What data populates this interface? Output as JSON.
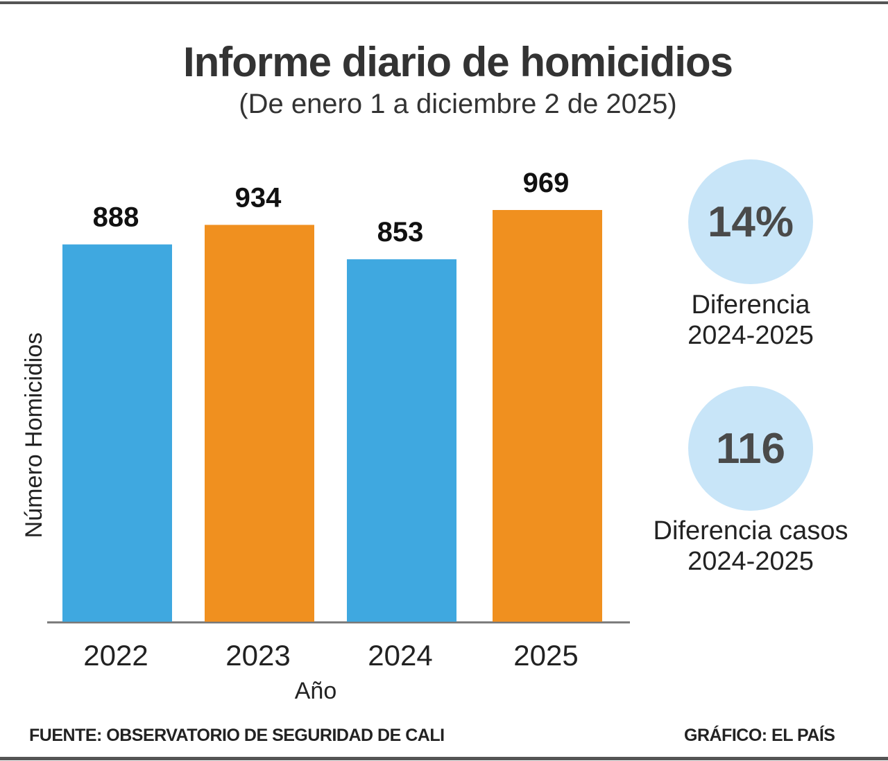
{
  "chart_data": {
    "type": "bar",
    "title": "Informe diario de homicidios",
    "subtitle": "(De enero 1 a diciembre  2 de 2025)",
    "categories": [
      "2022",
      "2023",
      "2024",
      "2025"
    ],
    "values": [
      888,
      934,
      853,
      969
    ],
    "data_labels": [
      "888",
      "934",
      "853",
      "969"
    ],
    "bar_colors": [
      "#3fa8e0",
      "#f0901f",
      "#3fa8e0",
      "#f0901f"
    ],
    "xlabel": "Año",
    "ylabel": "Número Homicidios",
    "ylim": [
      0,
      969
    ],
    "grid": false,
    "legend": "none"
  },
  "stats": [
    {
      "value": "14%",
      "label_line1": "Diferencia",
      "label_line2": "2024-2025"
    },
    {
      "value": "116",
      "label_line1": "Diferencia casos",
      "label_line2": "2024-2025"
    }
  ],
  "footer": {
    "source": "FUENTE:  OBSERVATORIO DE SEGURIDAD DE CALI",
    "credit": "GRÁFICO: EL PAÍS"
  },
  "colors": {
    "circle": "#c8e5f8",
    "blue": "#3fa8e0",
    "orange": "#f0901f"
  }
}
